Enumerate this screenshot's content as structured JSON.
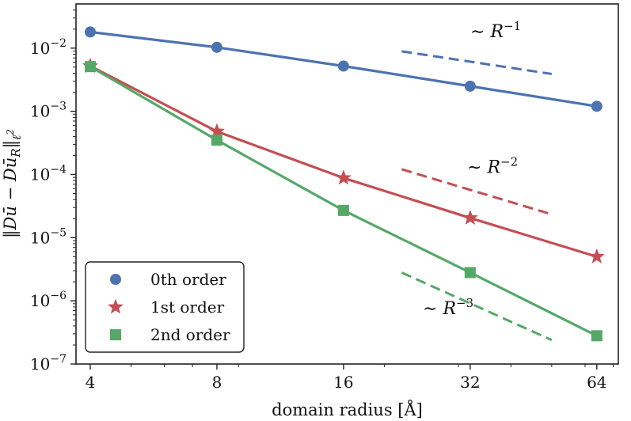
{
  "chart_data": {
    "type": "line",
    "xscale": "log2",
    "yscale": "log10",
    "xlabel": "domain radius [Å]",
    "ylabel": "‖Dū − Dū_R‖ℓ²",
    "x": [
      4,
      8,
      16,
      32,
      64
    ],
    "xticks": [
      "4",
      "8",
      "16",
      "32",
      "64"
    ],
    "ytick_values": [
      1e-07,
      1e-06,
      1e-05,
      0.0001,
      0.001,
      0.01
    ],
    "yticks": [
      {
        "base": "10",
        "exp": "−7"
      },
      {
        "base": "10",
        "exp": "−6"
      },
      {
        "base": "10",
        "exp": "−5"
      },
      {
        "base": "10",
        "exp": "−4"
      },
      {
        "base": "10",
        "exp": "−3"
      },
      {
        "base": "10",
        "exp": "−2"
      }
    ],
    "xlim": [
      3.7,
      72
    ],
    "ylim": [
      1e-07,
      0.05
    ],
    "grid": false,
    "series": [
      {
        "name": "0th order",
        "marker": "circle",
        "color": "#4c72b0",
        "values": [
          0.018,
          0.0103,
          0.0052,
          0.0025,
          0.0012
        ]
      },
      {
        "name": "1st order",
        "marker": "star",
        "color": "#c44e52",
        "values": [
          0.0052,
          0.00048,
          8.8e-05,
          2.05e-05,
          5e-06
        ]
      },
      {
        "name": "2nd order",
        "marker": "square",
        "color": "#55a868",
        "values": [
          0.0051,
          0.00035,
          2.7e-05,
          2.8e-06,
          2.8e-07
        ]
      }
    ],
    "reference_lines": [
      {
        "label_prefix": "∼ R",
        "exp": "−1",
        "color": "#4c72b0",
        "x": [
          22,
          50
        ],
        "y": [
          0.0089,
          0.0039
        ]
      },
      {
        "label_prefix": "∼ R",
        "exp": "−2",
        "color": "#c44e52",
        "x": [
          22,
          50
        ],
        "y": [
          0.000121,
          2.34e-05
        ]
      },
      {
        "label_prefix": "∼ R",
        "exp": "−3",
        "color": "#55a868",
        "x": [
          22,
          50
        ],
        "y": [
          2.8e-06,
          2.4e-07
        ]
      }
    ],
    "legend": {
      "position": "lower-left"
    }
  }
}
